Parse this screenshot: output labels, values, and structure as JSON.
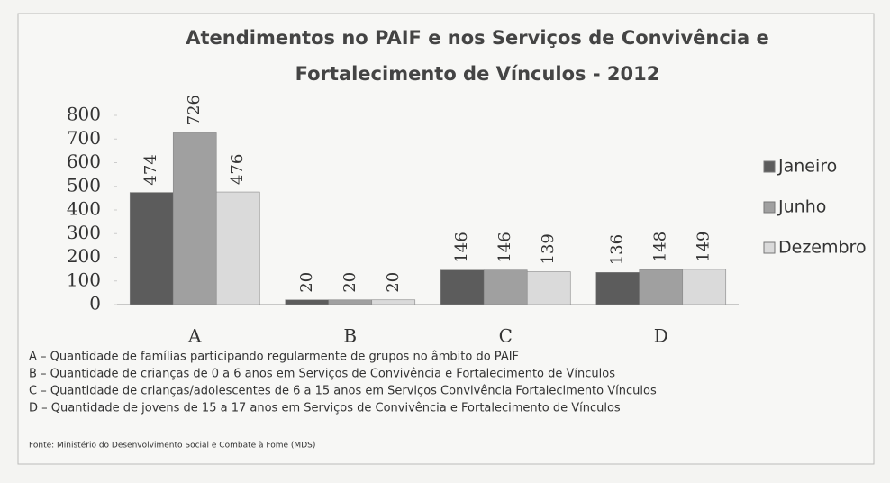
{
  "chart_data": {
    "type": "bar",
    "title": "Atendimentos no PAIF e nos Serviços de Convivência e Fortalecimento de Vínculos - 2012",
    "categories": [
      "A",
      "B",
      "C",
      "D"
    ],
    "series": [
      {
        "name": "Janeiro",
        "color": "#5c5c5c",
        "values": [
          474,
          20,
          146,
          136
        ]
      },
      {
        "name": "Junho",
        "color": "#a0a0a0",
        "values": [
          726,
          20,
          146,
          148
        ]
      },
      {
        "name": "Dezembro",
        "color": "#dadada",
        "values": [
          476,
          20,
          139,
          149
        ]
      }
    ],
    "ylim": [
      0,
      800
    ],
    "yticks": [
      0,
      100,
      200,
      300,
      400,
      500,
      600,
      700,
      800
    ],
    "legend": "right",
    "notes": [
      "A – Quantidade de famílias participando regularmente de grupos no âmbito do PAIF",
      "B – Quantidade de crianças de 0 a 6 anos em Serviços de Convivência e Fortalecimento de Vínculos",
      "C – Quantidade de crianças/adolescentes de 6 a 15 anos em Serviços Convivência Fortalecimento Vínculos",
      "D – Quantidade de jovens de 15 a 17 anos em Serviços de Convivência e Fortalecimento de Vínculos"
    ],
    "source": "Fonte: Ministério do Desenvolvimento Social e Combate à Fome (MDS)"
  }
}
